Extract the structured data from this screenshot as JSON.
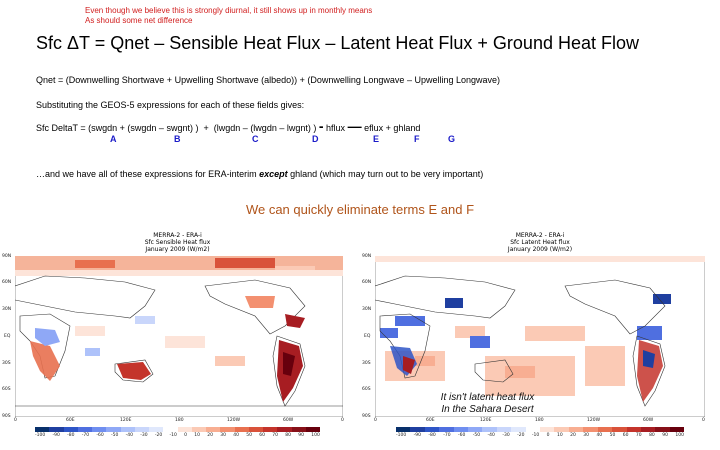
{
  "note": {
    "line1": "Even though we believe this is strongly diurnal, it still shows up in monthly means",
    "line2": "As should some net difference"
  },
  "title": "Sfc ΔT = Qnet – Sensible Heat Flux – Latent  Heat Flux + Ground Heat Flow",
  "qnet_line": "Qnet = (Downwelling Shortwave + Upwelling Shortwave (albedo)) + (Downwelling Longwave – Upwelling Longwave)",
  "subst_line": "Substituting the GEOS-5 expressions for each of these fields gives:",
  "equation": {
    "lhs": "Sfc DeltaT = ",
    "termA": "(swgdn",
    "plus1": "+",
    "termB": "(swgdn – swgnt) )",
    "plus2": "+",
    "termC": "(lwgdn",
    "minus1": "–",
    "termD": "(lwgdn – lwgnt) )",
    "minus2": "-",
    "termE": "hflux",
    "minus3": "—",
    "termF": "eflux",
    "plus3": "+",
    "termG": "ghland"
  },
  "labels": [
    "A",
    "B",
    "C",
    "D",
    "E",
    "F",
    "G"
  ],
  "era_line": {
    "before": "…and we have all of these expressions for ERA-interim ",
    "emph": "except",
    "after": "  ghland (which may turn out to be very important)"
  },
  "subhead": "We can quickly eliminate terms E and F",
  "maps": [
    {
      "title1": "MERRA-2 - ERA-i",
      "title2": "Sfc Sensible Heat flux",
      "title3": "January 2009 (W/m2)",
      "lat_labels": [
        "90N",
        "60N",
        "30N",
        "EQ",
        "30S",
        "60S",
        "90S"
      ],
      "lon_labels": [
        "0",
        "60E",
        "120E",
        "180",
        "120W",
        "60W",
        "0"
      ],
      "cbar_ticks": [
        "-100",
        "-90",
        "-80",
        "-70",
        "-60",
        "-50",
        "-40",
        "-30",
        "-20",
        "-10",
        "0",
        "10",
        "20",
        "30",
        "40",
        "50",
        "60",
        "70",
        "80",
        "90",
        "100"
      ]
    },
    {
      "title1": "MERRA-2 - ERA-i",
      "title2": "Sfc Latent Heat flux",
      "title3": "January 2009 (W/m2)",
      "lat_labels": [
        "90N",
        "60N",
        "30N",
        "EQ",
        "30S",
        "60S",
        "90S"
      ],
      "lon_labels": [
        "0",
        "60E",
        "120E",
        "180",
        "120W",
        "60W",
        "0"
      ],
      "cbar_ticks": [
        "-100",
        "-90",
        "-80",
        "-70",
        "-60",
        "-50",
        "-40",
        "-30",
        "-20",
        "-10",
        "0",
        "10",
        "20",
        "30",
        "40",
        "50",
        "60",
        "70",
        "80",
        "90",
        "100"
      ],
      "overlay1": "It isn't latent heat flux",
      "overlay2": "In the Sahara Desert"
    }
  ],
  "colors": {
    "note": "#d11e1e",
    "term_letters": "#1a1ac8",
    "subhead": "#b0541a",
    "scale": [
      "#08306b",
      "#1f3fa0",
      "#2e55c7",
      "#4f6fe0",
      "#6f8ef0",
      "#8fa8f6",
      "#aec2fa",
      "#c9d6fb",
      "#e0e8fc",
      "#f2f5fe",
      "#ffffff",
      "#fde4d9",
      "#fbcab5",
      "#f8ae92",
      "#f39070",
      "#e8704f",
      "#d9523a",
      "#c4342b",
      "#a71d22",
      "#871018",
      "#67000d"
    ]
  }
}
